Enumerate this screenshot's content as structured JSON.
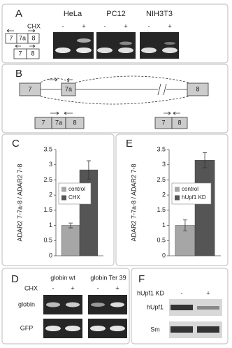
{
  "panel_a": {
    "label": "A",
    "cell_lines": [
      "HeLa",
      "PC12",
      "NIH3T3"
    ],
    "treatment": "CHX",
    "lanes": [
      "-",
      "+",
      "-",
      "+",
      "-",
      "+"
    ],
    "isoform_long": [
      "7",
      "7a",
      "8"
    ],
    "isoform_short": [
      "7",
      "8"
    ]
  },
  "panel_b": {
    "label": "B",
    "gene_exons": [
      "7",
      "7a",
      "8"
    ],
    "product_long": [
      "7",
      "7a",
      "8"
    ],
    "product_short": [
      "7",
      "8"
    ]
  },
  "panel_d": {
    "label": "D",
    "constructs": [
      "globin wt",
      "globin Ter 39"
    ],
    "treatment": "CHX",
    "lanes": [
      "-",
      "+",
      "-",
      "+"
    ],
    "rows": [
      "globin",
      "GFP"
    ]
  },
  "panel_f": {
    "label": "F",
    "treatment": "hUpf1 KD",
    "lanes": [
      "-",
      "+"
    ],
    "rows": [
      "hUpf1",
      "Sm"
    ]
  },
  "chart_data": [
    {
      "type": "bar",
      "label": "C",
      "ylabel": "ADAR2 7-7a-8 / ADAR2 7-8",
      "ylim": [
        0,
        3.5
      ],
      "yticks": [
        0,
        0.5,
        1,
        1.5,
        2,
        2.5,
        3,
        3.5
      ],
      "grid": false,
      "series": [
        {
          "name": "control",
          "color": "#a6a6a6",
          "values": [
            1.0
          ],
          "errors": [
            0.08
          ]
        },
        {
          "name": "CHX",
          "color": "#555555",
          "values": [
            2.83
          ],
          "errors": [
            0.3
          ]
        }
      ]
    },
    {
      "type": "bar",
      "label": "E",
      "ylabel": "ADAR2 7-7a-8 / ADAR2 7-8",
      "ylim": [
        0,
        3.5
      ],
      "yticks": [
        0,
        0.5,
        1,
        1.5,
        2,
        2.5,
        3,
        3.5
      ],
      "grid": false,
      "series": [
        {
          "name": "control",
          "color": "#a6a6a6",
          "values": [
            1.0
          ],
          "errors": [
            0.18
          ]
        },
        {
          "name": "hUpf1 KD",
          "color": "#555555",
          "values": [
            3.15
          ],
          "errors": [
            0.25
          ]
        }
      ]
    }
  ]
}
